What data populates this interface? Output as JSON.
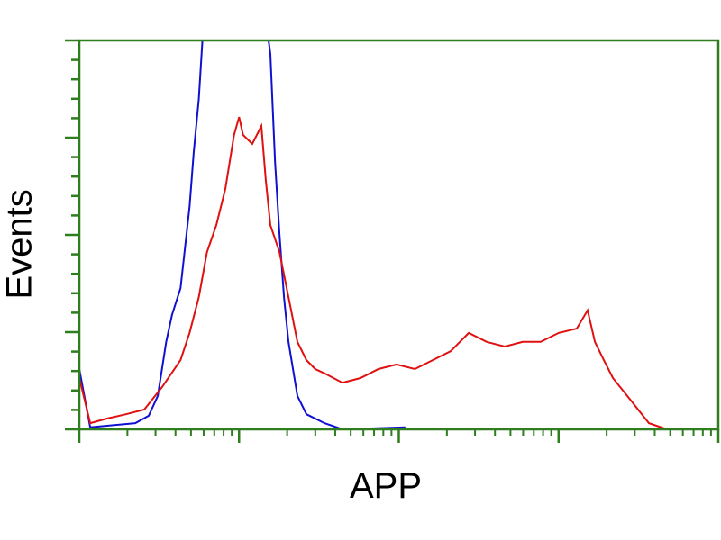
{
  "chart_data": {
    "type": "line",
    "title": "",
    "xlabel": "APP",
    "ylabel": "Events",
    "x_scale": "log",
    "xlim": [
      1,
      10000
    ],
    "ylim": [
      0,
      100
    ],
    "grid": false,
    "axis_color": "#2e7d1e",
    "series": [
      {
        "color": "#1010d0",
        "x": [
          1,
          1.17,
          2.24,
          2.72,
          3.1,
          3.5,
          3.8,
          4.3,
          4.9,
          5.2,
          5.6,
          5.9,
          10,
          15.3,
          15.7,
          16.8,
          17.9,
          19.1,
          20.4,
          23.2,
          26.4,
          34.3,
          44.4,
          110
        ],
        "y": [
          15.5,
          0.5,
          1.6,
          3.5,
          8.6,
          22.5,
          29.4,
          36.3,
          57.2,
          71.1,
          85,
          100,
          130,
          100,
          96.5,
          68.7,
          50.2,
          34,
          22.5,
          8.6,
          3.9,
          1.6,
          0,
          0.5
        ]
      },
      {
        "color": "#e01010",
        "x": [
          1,
          1.17,
          1.5,
          1.96,
          2.55,
          3.3,
          4.3,
          4.9,
          5.6,
          6.3,
          7.2,
          8.2,
          9.3,
          10,
          10.6,
          12.1,
          13.8,
          14.7,
          15.7,
          17.9,
          20.4,
          23.2,
          26.4,
          30,
          34.3,
          44.4,
          57.6,
          74.6,
          96.8,
          126,
          163,
          211,
          274,
          355,
          460,
          597,
          773,
          1000,
          1300,
          1520,
          1690,
          1920,
          2190,
          2840,
          3680,
          4770,
          10000
        ],
        "y": [
          13.2,
          1.6,
          2.8,
          3.9,
          5.1,
          10.9,
          17.8,
          24.8,
          34,
          45.6,
          52.5,
          61.8,
          75.7,
          80.3,
          75.7,
          73.4,
          78,
          64.1,
          52.5,
          45.6,
          34,
          22.5,
          17.8,
          15.5,
          14.4,
          12,
          13.2,
          15.5,
          16.7,
          15.5,
          17.8,
          20.1,
          24.8,
          22.5,
          21.3,
          22.5,
          22.5,
          24.8,
          25.9,
          30.6,
          22.5,
          17.8,
          13.2,
          7.4,
          1.6,
          0,
          0
        ]
      }
    ]
  }
}
